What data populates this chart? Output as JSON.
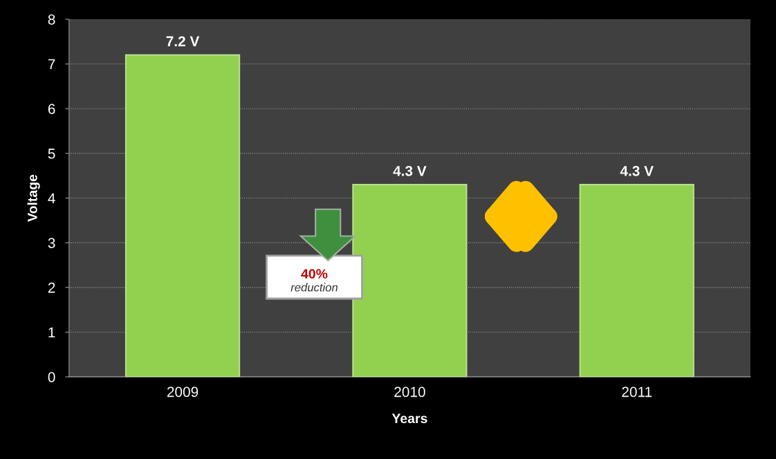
{
  "chart_data": {
    "type": "bar",
    "categories": [
      "2009",
      "2010",
      "2011"
    ],
    "values": [
      7.2,
      4.3,
      4.3
    ],
    "color": "#92d050",
    "value_labels": [
      "7.2 V",
      "4.3 V",
      "4.3 V"
    ],
    "xlabel": "Years",
    "ylabel": "Voltage",
    "ylim": [
      0,
      8
    ],
    "yticks": [
      0,
      1,
      2,
      3,
      4,
      5,
      6,
      7,
      8
    ],
    "grid": "y",
    "annotations": [
      "40%",
      "reduction"
    ]
  }
}
